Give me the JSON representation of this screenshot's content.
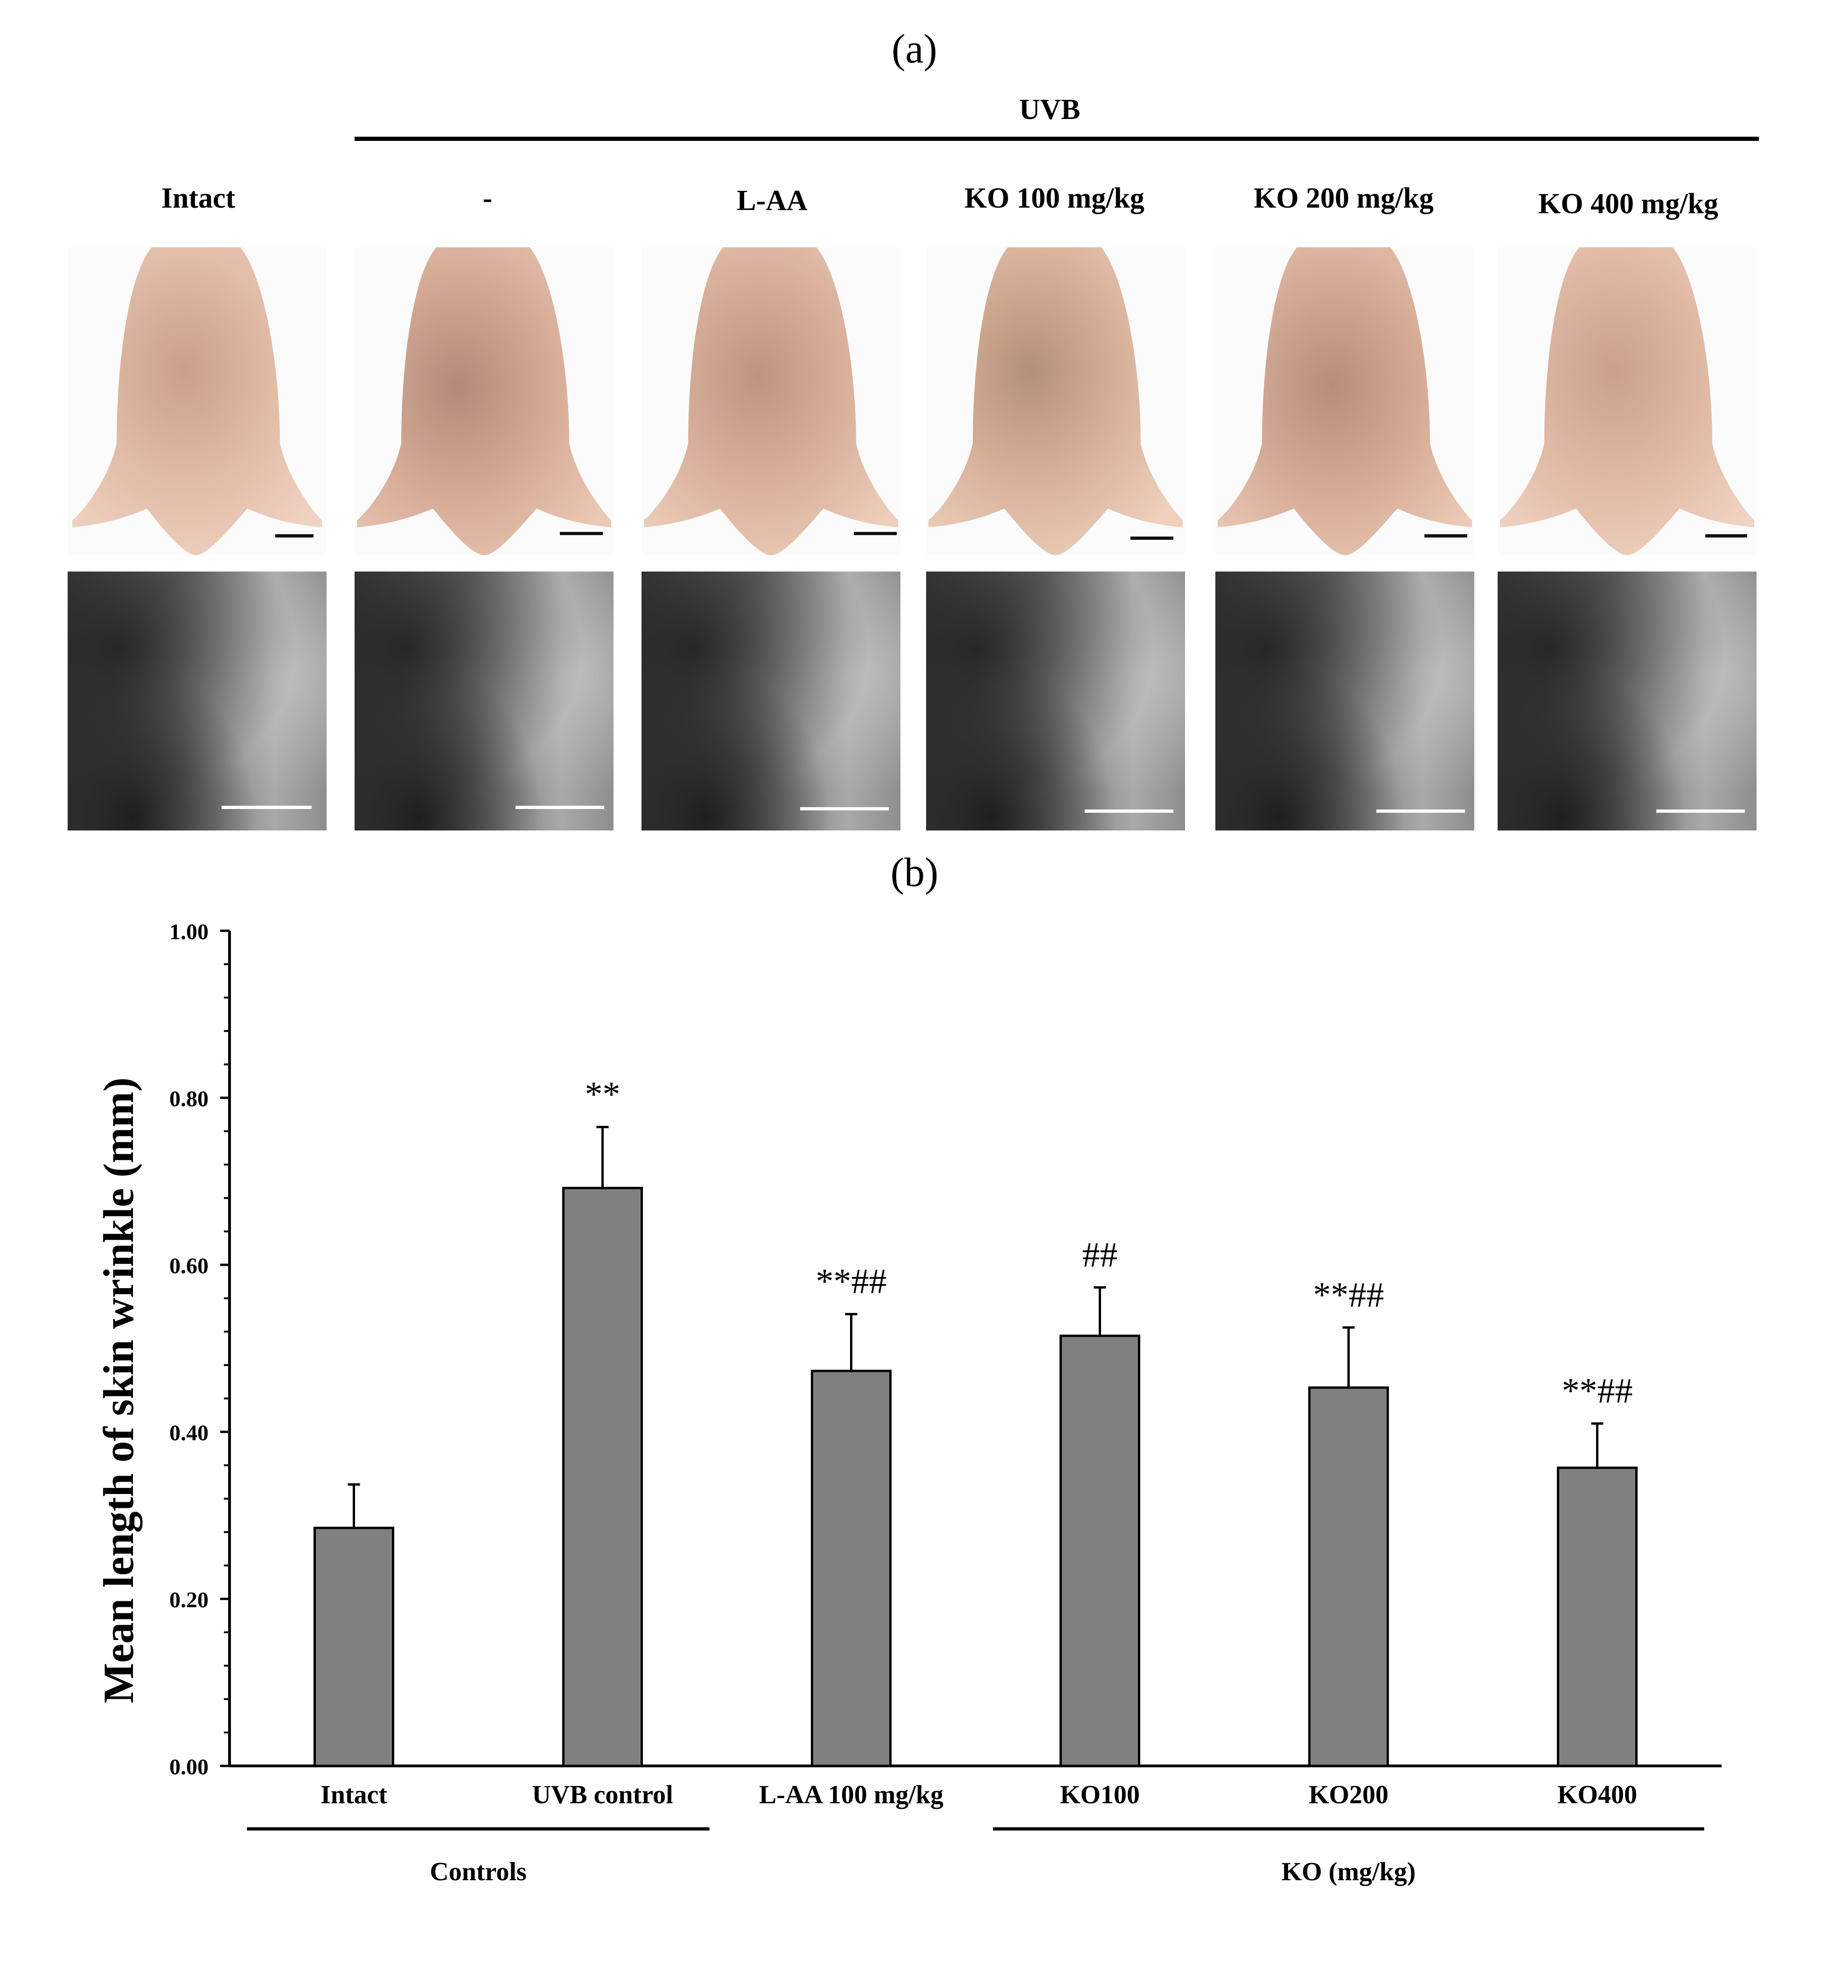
{
  "panel_a": {
    "label": "(a)",
    "uvb_label": "UVB",
    "columns": [
      {
        "label": "Intact"
      },
      {
        "label": "-"
      },
      {
        "label": "L-AA"
      },
      {
        "label": "KO 100 mg/kg"
      },
      {
        "label": "KO 200 mg/kg"
      },
      {
        "label": "KO 400 mg/kg"
      }
    ]
  },
  "panel_b": {
    "label": "(b)"
  },
  "chart_data": {
    "type": "bar",
    "title": "",
    "xlabel": "",
    "ylabel": "Mean length of skin wrinkle (mm)",
    "ylim": [
      0,
      1.0
    ],
    "yticks": [
      "0.00",
      "0.20",
      "0.40",
      "0.60",
      "0.80",
      "1.00"
    ],
    "categories": [
      "Intact",
      "UVB control",
      "L-AA 100 mg/kg",
      "KO100",
      "KO200",
      "KO400"
    ],
    "values": [
      0.285,
      0.692,
      0.473,
      0.515,
      0.453,
      0.357
    ],
    "errors": [
      0.052,
      0.073,
      0.068,
      0.058,
      0.072,
      0.053
    ],
    "annotations": [
      "",
      "**",
      "**##",
      "##",
      "**##",
      "**##"
    ],
    "bar_color": "#808080",
    "grid": false,
    "groups": [
      {
        "label": "Controls",
        "from": 0,
        "to": 1
      },
      {
        "label": "KO (mg/kg)",
        "from": 3,
        "to": 5
      }
    ]
  }
}
